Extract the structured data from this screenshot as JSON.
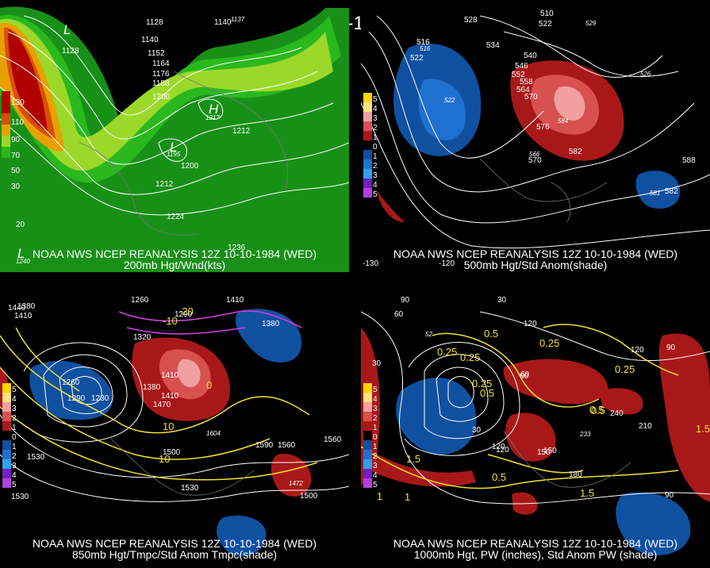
{
  "header": {
    "title": "12Z 10-10-1984 (WED)"
  },
  "panels": {
    "p200": {
      "caption_line1": "NOAA NWS NCEP REANALYSIS 12Z 10-10-1984 (WED)",
      "caption_line2": "200mb Hgt/Wnd(kts)",
      "legend": [
        "130",
        "110",
        "90",
        "70",
        "50",
        "30"
      ],
      "labels": [
        "1128",
        "1128",
        "1140",
        "1140",
        "1137",
        "1152",
        "1164",
        "1176",
        "1188",
        "1200",
        "1212",
        "1217",
        "1200",
        "1212",
        "1224",
        "1195",
        "1236",
        "1240",
        "20"
      ],
      "centers": [
        "L",
        "H",
        "L",
        "L"
      ]
    },
    "p500": {
      "caption_line1": "NOAA NWS NCEP REANALYSIS 12Z 10-10-1984 (WED)",
      "caption_line2": "500mb Hgt/Std Anom(shade)",
      "legend": [
        "5",
        "4",
        "3",
        "2",
        "1",
        "0",
        "1",
        "2",
        "3",
        "4",
        "5"
      ],
      "labels": [
        "528",
        "516",
        "510",
        "522",
        "522",
        "534",
        "540",
        "546",
        "552",
        "558",
        "564",
        "570",
        "576",
        "582",
        "570",
        "588",
        "582",
        "522",
        "529",
        "526",
        "584",
        "566",
        "581",
        "516"
      ],
      "axis_labels": [
        "-120",
        "-130"
      ]
    },
    "p850": {
      "caption_line1": "NOAA NWS NCEP REANALYSIS 12Z 10-10-1984 (WED)",
      "caption_line2": "850mb Hgt/Tmpc/Std Anom Tmpc(shade)",
      "legend": [
        "5",
        "4",
        "3",
        "2",
        "1",
        "0",
        "1",
        "2",
        "3",
        "4",
        "5"
      ],
      "labels": [
        "1440",
        "1410",
        "1260",
        "1290",
        "1410",
        "1380",
        "1320",
        "1380",
        "1260",
        "1290",
        "1230",
        "1410",
        "1380",
        "1410",
        "1470",
        "1500",
        "1530",
        "1560",
        "1590",
        "1530",
        "1560",
        "1500",
        "1530",
        "1604",
        "1472",
        "10",
        "10",
        "0",
        "-10",
        "-20"
      ]
    },
    "p1000": {
      "caption_line1": "NOAA NWS NCEP REANALYSIS 12Z 10-10-1984 (WED)",
      "caption_line2": "1000mb Hgt, PW (inches), Std Anom PW (shade)",
      "legend": [
        "5",
        "4",
        "3",
        "2",
        "1",
        "0",
        "1",
        "2",
        "3",
        "4",
        "5"
      ],
      "labels": [
        "90",
        "60",
        "30",
        "30",
        "0.25",
        "0.25",
        "0.5",
        "0.5",
        "0.25",
        "0.25",
        "0.5",
        "120",
        "150",
        "180",
        "120",
        "90",
        "0.5",
        "1.5",
        "1.5",
        "1",
        "1.5",
        "1",
        "0.5",
        "0.25",
        "120",
        "240",
        "210",
        "30",
        "60",
        "52",
        "90",
        "60",
        "150",
        "120",
        "233"
      ]
    }
  },
  "colors": {
    "wind": [
      "#b00000",
      "#d85000",
      "#e8a000",
      "#9cd82a",
      "#2ab81e",
      "#189018"
    ],
    "anom": [
      "#ffd500",
      "#ffe080",
      "#f0a0a0",
      "#d85050",
      "#a81818",
      "#000000",
      "#1050a0",
      "#2070d0",
      "#30a0f0",
      "#7020c0",
      "#b040e0"
    ]
  }
}
